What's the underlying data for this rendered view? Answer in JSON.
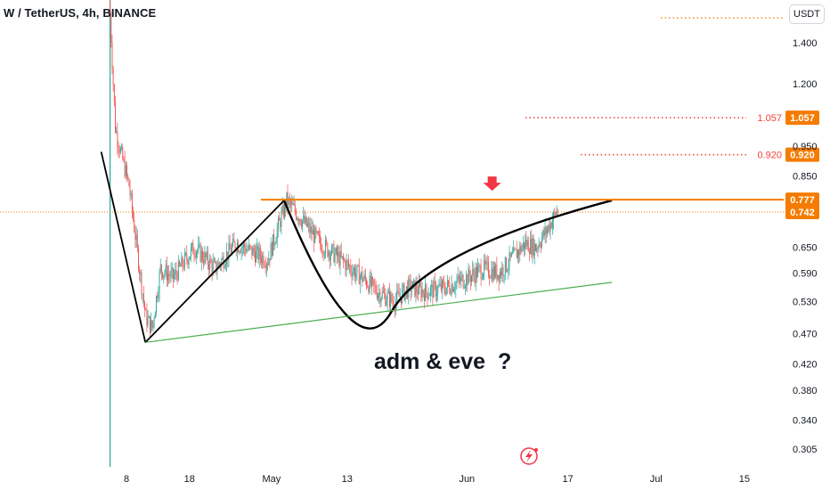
{
  "header": {
    "symbol_title": "W / TetherUS, 4h, BINANCE",
    "currency": "USDT"
  },
  "annotation": {
    "text": "adm & eve  ?"
  },
  "colors": {
    "up": "#26a69a",
    "down": "#ef5350",
    "resistance": "#f57c00",
    "pattern": "#000000",
    "trendline": "#4caf50",
    "level_dots": "#f44336",
    "cursor": "#26a69a",
    "arrow": "#f23645",
    "price_tag": "#f57c00"
  },
  "chart_data": {
    "type": "candlestick",
    "title": "",
    "price_axis": {
      "scale": "log",
      "ticks": [
        1.4,
        1.2,
        0.95,
        0.85,
        0.65,
        0.59,
        0.53,
        0.47,
        0.42,
        0.38,
        0.34,
        0.305
      ],
      "tick_labels": [
        "1.400",
        "1.200",
        "0.950",
        "0.850",
        "0.650",
        "0.590",
        "0.530",
        "0.470",
        "0.420",
        "0.380",
        "0.340",
        "0.305"
      ]
    },
    "time_axis": {
      "ticks": [
        "Apr 8",
        "Apr 18",
        "May 1",
        "May 13",
        "Jun 1",
        "Jun 17",
        "Jul 1",
        "Jul 15"
      ],
      "tick_labels": [
        "8",
        "18",
        "May",
        "13",
        "Jun",
        "17",
        "Jul",
        "15"
      ]
    },
    "candles": {
      "start": "Apr 3",
      "end": "Jun 8",
      "interval": "4h"
    },
    "levels": [
      {
        "name": "resistance",
        "price": 0.777,
        "label": "0.777"
      },
      {
        "name": "last-price",
        "price": 0.742,
        "label": "0.742"
      },
      {
        "name": "target-1",
        "price": 1.057,
        "label": "1.057"
      },
      {
        "name": "target-2",
        "price": 0.92,
        "label": "0.920"
      },
      {
        "name": "top-level",
        "price": 1.55,
        "label": ""
      }
    ],
    "drawings": [
      {
        "name": "impulse-down",
        "points": [
          [
            "Apr 4",
            0.93
          ],
          [
            "Apr 11",
            0.455
          ]
        ]
      },
      {
        "name": "adam-leg-up",
        "points": [
          [
            "Apr 11",
            0.455
          ],
          [
            "May 3",
            0.775
          ]
        ]
      },
      {
        "name": "eve-cup",
        "type": "curve",
        "points": [
          [
            "May 3",
            0.775
          ],
          [
            "May 20",
            0.51
          ],
          [
            "Jun 24",
            0.775
          ]
        ]
      },
      {
        "name": "rising-trendline",
        "points": [
          [
            "Apr 11",
            0.455
          ],
          [
            "Jun 24",
            0.57
          ]
        ]
      }
    ],
    "grid": false,
    "legend": "none"
  }
}
